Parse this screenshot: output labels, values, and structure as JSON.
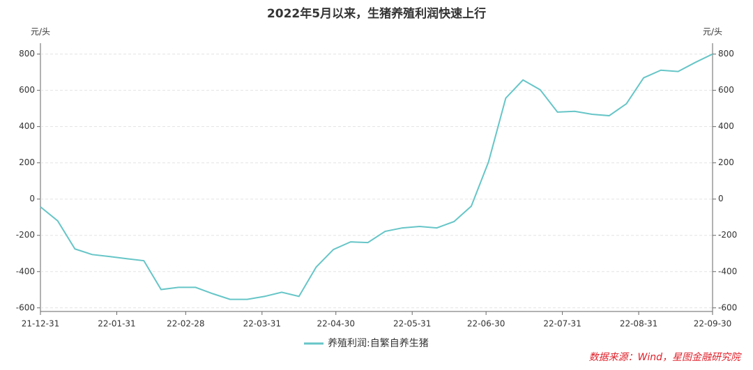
{
  "chart_data": {
    "type": "line",
    "title": "2022年5月以来，生猪养殖利润快速上行",
    "y_label": "元/头",
    "y2_label": "元/头",
    "x": [
      "21-12-31",
      "22-01-07",
      "22-01-14",
      "22-01-21",
      "22-01-28",
      "22-02-04",
      "22-02-11",
      "22-02-18",
      "22-02-25",
      "22-03-04",
      "22-03-11",
      "22-03-18",
      "22-03-25",
      "22-04-01",
      "22-04-08",
      "22-04-15",
      "22-04-22",
      "22-04-29",
      "22-05-06",
      "22-05-13",
      "22-05-20",
      "22-05-27",
      "22-06-03",
      "22-06-10",
      "22-06-17",
      "22-06-24",
      "22-07-01",
      "22-07-08",
      "22-07-15",
      "22-07-22",
      "22-07-29",
      "22-08-05",
      "22-08-12",
      "22-08-19",
      "22-08-26",
      "22-09-02",
      "22-09-09",
      "22-09-16",
      "22-09-23",
      "22-09-30"
    ],
    "series": [
      {
        "name": "养殖利润:自繁自养生猪",
        "color": "#66c5c7",
        "values": [
          -43,
          -120,
          -275,
          -306,
          -317,
          -329,
          -340,
          -499,
          -487,
          -487,
          -522,
          -553,
          -553,
          -537,
          -514,
          -537,
          -375,
          -278,
          -236,
          -240,
          -178,
          -159,
          -151,
          -159,
          -124,
          -39,
          205,
          557,
          657,
          603,
          480,
          484,
          468,
          460,
          526,
          669,
          711,
          704,
          754,
          800
        ]
      }
    ],
    "xlim": [
      "21-12-31",
      "22-09-30"
    ],
    "xticks": [
      "21-12-31",
      "22-01-31",
      "22-02-28",
      "22-03-31",
      "22-04-30",
      "22-05-31",
      "22-06-30",
      "22-07-31",
      "22-08-31",
      "22-09-30"
    ],
    "ylim": [
      -620,
      860
    ],
    "yticks": [
      -600,
      -400,
      -200,
      0,
      200,
      400,
      600,
      800
    ],
    "y2lim": [
      -620,
      860
    ],
    "y2ticks": [
      -600,
      -400,
      -200,
      0,
      200,
      400,
      600,
      800
    ],
    "grid": true,
    "legend": "bottom",
    "source": "数据来源：Wind，星图金融研究院"
  }
}
